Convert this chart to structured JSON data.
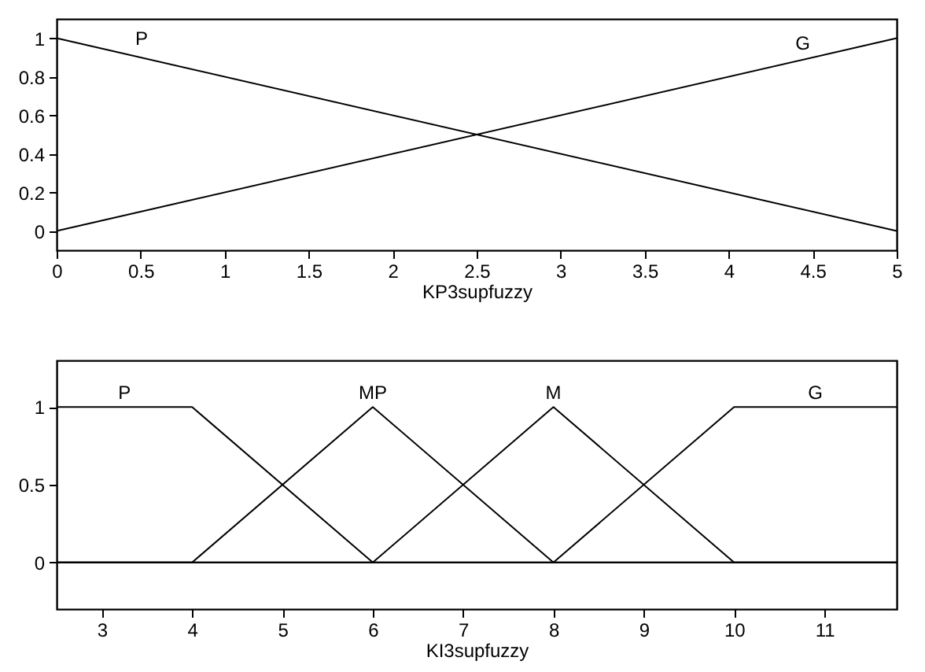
{
  "chart_data": [
    {
      "type": "line",
      "xlabel": "KP3supfuzzy",
      "xlim": [
        0,
        5
      ],
      "ylim": [
        -0.1,
        1.1
      ],
      "xticks": [
        0,
        0.5,
        1,
        1.5,
        2,
        2.5,
        3,
        3.5,
        4,
        4.5,
        5
      ],
      "yticks": [
        0,
        0.2,
        0.4,
        0.6,
        0.8,
        1
      ],
      "series": [
        {
          "name": "P",
          "color": "#000000",
          "x": [
            0,
            5
          ],
          "values": [
            1,
            0
          ]
        },
        {
          "name": "G",
          "color": "#000000",
          "x": [
            0,
            5
          ],
          "values": [
            0,
            1
          ]
        }
      ]
    },
    {
      "type": "line",
      "xlabel": "KI3supfuzzy",
      "xlim": [
        2.5,
        11.8
      ],
      "ylim": [
        -0.3,
        1.3
      ],
      "xticks": [
        3,
        4,
        5,
        6,
        7,
        8,
        9,
        10,
        11
      ],
      "yticks": [
        0,
        0.5,
        1
      ],
      "series": [
        {
          "name": "P",
          "color": "#000000",
          "x": [
            2.5,
            4,
            6,
            11.8
          ],
          "values": [
            1,
            1,
            0,
            0
          ]
        },
        {
          "name": "MP",
          "color": "#000000",
          "x": [
            2.5,
            4,
            6,
            8,
            11.8
          ],
          "values": [
            0,
            0,
            1,
            0,
            0
          ]
        },
        {
          "name": "M",
          "color": "#000000",
          "x": [
            2.5,
            6,
            8,
            10,
            11.8
          ],
          "values": [
            0,
            0,
            1,
            0,
            0
          ]
        },
        {
          "name": "G",
          "color": "#000000",
          "x": [
            2.5,
            8,
            10,
            11.8
          ],
          "values": [
            0,
            0,
            1,
            1
          ]
        }
      ]
    }
  ]
}
